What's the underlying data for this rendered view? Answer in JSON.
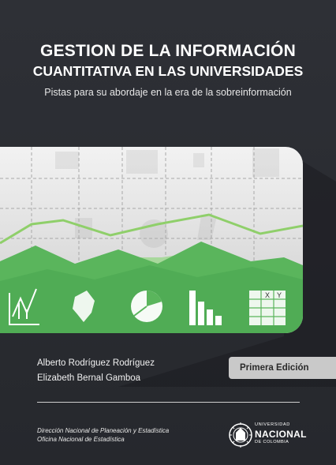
{
  "cover": {
    "title_line1": "GESTION DE LA INFORMACIÓN",
    "title_line2": "CUANTITATIVA EN LAS UNIVERSIDADES",
    "subtitle": "Pistas para su abordaje en la era de la sobreinformación",
    "authors": [
      "Alberto Rodríguez Rodríguez",
      "Elizabeth Bernal Gamboa"
    ],
    "edition": "Primera Edición",
    "office_lines": [
      "Dirección Nacional de Planeación y Estadística",
      "Oficina Nacional de Estadística"
    ],
    "logo": {
      "line1": "UNIVERSIDAD",
      "line2": "NACIONAL",
      "line3": "DE COLOMBIA"
    },
    "illustration": {
      "table_header": [
        "X",
        "Y"
      ],
      "icons": [
        "line-chart-icon",
        "map-icon",
        "pie-chart-icon",
        "bar-chart-icon",
        "table-icon"
      ]
    },
    "colors": {
      "background": "#2b2d33",
      "accent_green": "#5cb85c",
      "edition_box": "#c9c9c9"
    }
  }
}
